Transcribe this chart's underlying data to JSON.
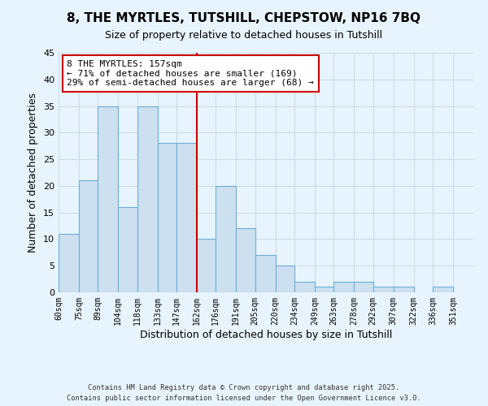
{
  "title": "8, THE MYRTLES, TUTSHILL, CHEPSTOW, NP16 7BQ",
  "subtitle": "Size of property relative to detached houses in Tutshill",
  "xlabel": "Distribution of detached houses by size in Tutshill",
  "ylabel": "Number of detached properties",
  "bin_labels": [
    "60sqm",
    "75sqm",
    "89sqm",
    "104sqm",
    "118sqm",
    "133sqm",
    "147sqm",
    "162sqm",
    "176sqm",
    "191sqm",
    "205sqm",
    "220sqm",
    "234sqm",
    "249sqm",
    "263sqm",
    "278sqm",
    "292sqm",
    "307sqm",
    "322sqm",
    "336sqm",
    "351sqm"
  ],
  "bin_edges": [
    60,
    75,
    89,
    104,
    118,
    133,
    147,
    162,
    176,
    191,
    205,
    220,
    234,
    249,
    263,
    278,
    292,
    307,
    322,
    336,
    351,
    366
  ],
  "counts": [
    11,
    21,
    35,
    16,
    35,
    28,
    28,
    10,
    20,
    12,
    7,
    5,
    2,
    1,
    2,
    2,
    1,
    1,
    0,
    1,
    0
  ],
  "bar_color": "#cce0f0",
  "bar_edge_color": "#6aaed6",
  "vline_x": 162,
  "vline_color": "#cc0000",
  "annotation_title": "8 THE MYRTLES: 157sqm",
  "annotation_line1": "← 71% of detached houses are smaller (169)",
  "annotation_line2": "29% of semi-detached houses are larger (68) →",
  "annotation_box_color": "#ffffff",
  "annotation_box_edge": "#cc0000",
  "ylim": [
    0,
    45
  ],
  "yticks": [
    0,
    5,
    10,
    15,
    20,
    25,
    30,
    35,
    40,
    45
  ],
  "footer1": "Contains HM Land Registry data © Crown copyright and database right 2025.",
  "footer2": "Contains public sector information licensed under the Open Government Licence v3.0.",
  "background_color": "#e8f4fd",
  "grid_color": "#c8dcea"
}
